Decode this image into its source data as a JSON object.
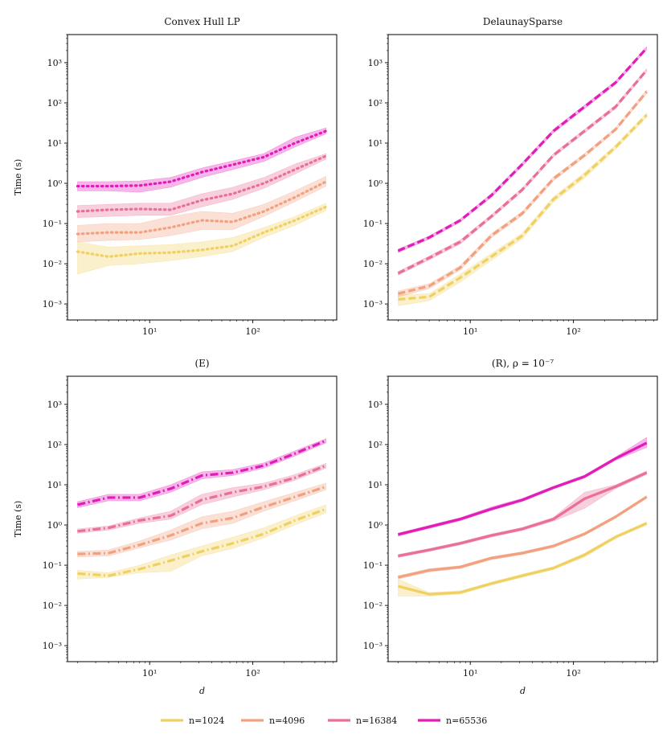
{
  "figure": {
    "legend": {
      "placement": "bottom-center",
      "entries": [
        {
          "label": "n=1024",
          "color": "#f0d060"
        },
        {
          "label": "n=4096",
          "color": "#f2a07e"
        },
        {
          "label": "n=16384",
          "color": "#ea6e96"
        },
        {
          "label": "n=65536",
          "color": "#e31cb8"
        }
      ]
    }
  },
  "chart_data": [
    {
      "type": "line",
      "title": "Convex Hull LP",
      "xlabel": "",
      "ylabel": "Time (s)",
      "xscale": "log",
      "yscale": "log",
      "xlim": [
        1.6,
        650
      ],
      "ylim": [
        0.0004,
        5000
      ],
      "linestyle": "dotted",
      "x": [
        2,
        4,
        8,
        16,
        32,
        64,
        128,
        256,
        512
      ],
      "series": [
        {
          "name": "n=1024",
          "color": "#f0d060",
          "values": [
            0.02,
            0.015,
            0.018,
            0.019,
            0.022,
            0.028,
            0.06,
            0.12,
            0.26
          ],
          "lower": [
            0.0055,
            0.009,
            0.01,
            0.012,
            0.015,
            0.02,
            0.045,
            0.09,
            0.21
          ],
          "upper": [
            0.035,
            0.026,
            0.028,
            0.03,
            0.035,
            0.045,
            0.08,
            0.15,
            0.32
          ]
        },
        {
          "name": "n=4096",
          "color": "#f2a07e",
          "values": [
            0.055,
            0.06,
            0.06,
            0.08,
            0.12,
            0.11,
            0.2,
            0.45,
            1.1
          ],
          "lower": [
            0.035,
            0.038,
            0.04,
            0.05,
            0.07,
            0.07,
            0.15,
            0.35,
            0.85
          ],
          "upper": [
            0.09,
            0.1,
            0.1,
            0.15,
            0.2,
            0.18,
            0.3,
            0.65,
            1.5
          ]
        },
        {
          "name": "n=16384",
          "color": "#ea6e96",
          "values": [
            0.2,
            0.22,
            0.23,
            0.22,
            0.38,
            0.55,
            1.0,
            2.2,
            4.8
          ],
          "lower": [
            0.14,
            0.15,
            0.16,
            0.16,
            0.26,
            0.4,
            0.75,
            1.7,
            4.0
          ],
          "upper": [
            0.28,
            0.3,
            0.32,
            0.32,
            0.55,
            0.8,
            1.4,
            3.0,
            5.5
          ]
        },
        {
          "name": "n=65536",
          "color": "#e31cb8",
          "values": [
            0.85,
            0.85,
            0.88,
            1.1,
            1.9,
            2.9,
            4.5,
            10.0,
            20.0
          ],
          "lower": [
            0.65,
            0.65,
            0.6,
            0.8,
            1.4,
            2.2,
            3.5,
            8.0,
            17.0
          ],
          "upper": [
            1.1,
            1.1,
            1.15,
            1.4,
            2.4,
            3.6,
            5.5,
            14.0,
            24.0
          ]
        }
      ]
    },
    {
      "type": "line",
      "title": "DelaunaySparse",
      "xlabel": "",
      "ylabel": "",
      "xscale": "log",
      "yscale": "log",
      "xlim": [
        1.6,
        650
      ],
      "ylim": [
        0.0004,
        5000
      ],
      "linestyle": "dashed",
      "x": [
        2,
        4,
        8,
        16,
        32,
        64,
        128,
        256,
        512
      ],
      "series": [
        {
          "name": "n=1024",
          "color": "#f0d060",
          "values": [
            0.0013,
            0.0015,
            0.0045,
            0.015,
            0.05,
            0.4,
            1.6,
            8.0,
            50
          ],
          "lower": [
            0.0009,
            0.0012,
            0.0035,
            0.012,
            0.042,
            0.34,
            1.35,
            7.0,
            44
          ],
          "upper": [
            0.0017,
            0.0018,
            0.0055,
            0.018,
            0.058,
            0.46,
            1.85,
            9.0,
            56
          ]
        },
        {
          "name": "n=4096",
          "color": "#f2a07e",
          "values": [
            0.0018,
            0.0028,
            0.008,
            0.05,
            0.18,
            1.3,
            5.0,
            22,
            190
          ],
          "lower": [
            0.0015,
            0.0024,
            0.007,
            0.044,
            0.16,
            1.15,
            4.5,
            20,
            170
          ],
          "upper": [
            0.0021,
            0.0032,
            0.009,
            0.056,
            0.2,
            1.45,
            5.5,
            24,
            210
          ]
        },
        {
          "name": "n=16384",
          "color": "#ea6e96",
          "values": [
            0.0058,
            0.014,
            0.035,
            0.15,
            0.7,
            5.0,
            20,
            80,
            650
          ],
          "lower": [
            0.0052,
            0.0125,
            0.031,
            0.135,
            0.63,
            4.5,
            18,
            72,
            590
          ],
          "upper": [
            0.0064,
            0.0155,
            0.039,
            0.165,
            0.77,
            5.5,
            22,
            88,
            710
          ]
        },
        {
          "name": "n=65536",
          "color": "#e31cb8",
          "values": [
            0.021,
            0.045,
            0.12,
            0.5,
            3.0,
            20,
            80,
            320,
            2300
          ],
          "lower": [
            0.019,
            0.041,
            0.11,
            0.45,
            2.7,
            18,
            72,
            290,
            2100
          ],
          "upper": [
            0.023,
            0.049,
            0.13,
            0.55,
            3.3,
            22,
            88,
            350,
            2500
          ]
        }
      ]
    },
    {
      "type": "line",
      "title": "(E)",
      "xlabel": "d",
      "ylabel": "Time (s)",
      "xscale": "log",
      "yscale": "log",
      "xlim": [
        1.6,
        650
      ],
      "ylim": [
        0.0004,
        5000
      ],
      "linestyle": "dashdot",
      "x": [
        2,
        4,
        8,
        16,
        32,
        64,
        128,
        256,
        512
      ],
      "series": [
        {
          "name": "n=1024",
          "color": "#f0d060",
          "values": [
            0.062,
            0.055,
            0.08,
            0.13,
            0.22,
            0.35,
            0.6,
            1.3,
            2.5
          ],
          "lower": [
            0.045,
            0.05,
            0.065,
            0.07,
            0.17,
            0.26,
            0.48,
            1.0,
            2.0
          ],
          "upper": [
            0.075,
            0.065,
            0.1,
            0.18,
            0.3,
            0.5,
            0.85,
            1.7,
            3.2
          ]
        },
        {
          "name": "n=4096",
          "color": "#f2a07e",
          "values": [
            0.19,
            0.2,
            0.32,
            0.55,
            1.1,
            1.5,
            2.8,
            5.0,
            9.0
          ],
          "lower": [
            0.16,
            0.17,
            0.27,
            0.42,
            0.8,
            1.1,
            2.2,
            4.0,
            7.5
          ],
          "upper": [
            0.22,
            0.24,
            0.4,
            0.75,
            1.6,
            2.2,
            3.8,
            6.5,
            11
          ]
        },
        {
          "name": "n=16384",
          "color": "#ea6e96",
          "values": [
            0.7,
            0.85,
            1.3,
            1.7,
            4.2,
            6.5,
            9.0,
            15,
            30
          ],
          "lower": [
            0.62,
            0.75,
            1.1,
            1.4,
            3.2,
            5.0,
            7.5,
            13,
            26
          ],
          "upper": [
            0.8,
            0.95,
            1.5,
            2.2,
            5.8,
            8.5,
            11,
            18,
            34
          ]
        },
        {
          "name": "n=65536",
          "color": "#e31cb8",
          "values": [
            3.2,
            4.8,
            4.8,
            8.0,
            17,
            20,
            30,
            60,
            125
          ],
          "lower": [
            2.7,
            4.0,
            4.0,
            6.5,
            14,
            17,
            26,
            52,
            110
          ],
          "upper": [
            3.8,
            5.8,
            5.8,
            10,
            21,
            24,
            35,
            70,
            140
          ]
        }
      ]
    },
    {
      "type": "line",
      "title": "(R), ρ = 10⁻⁷",
      "xlabel": "d",
      "ylabel": "",
      "xscale": "log",
      "yscale": "log",
      "xlim": [
        1.6,
        650
      ],
      "ylim": [
        0.0004,
        5000
      ],
      "linestyle": "solid",
      "x": [
        2,
        4,
        8,
        16,
        32,
        64,
        128,
        256,
        512
      ],
      "series": [
        {
          "name": "n=1024",
          "color": "#f0d060",
          "values": [
            0.03,
            0.019,
            0.021,
            0.035,
            0.055,
            0.085,
            0.18,
            0.5,
            1.1
          ],
          "lower": [
            0.017,
            0.017,
            0.019,
            0.032,
            0.05,
            0.078,
            0.16,
            0.46,
            1.0
          ],
          "upper": [
            0.045,
            0.021,
            0.023,
            0.038,
            0.06,
            0.092,
            0.2,
            0.55,
            1.2
          ]
        },
        {
          "name": "n=4096",
          "color": "#f2a07e",
          "values": [
            0.05,
            0.075,
            0.09,
            0.15,
            0.2,
            0.3,
            0.6,
            1.6,
            5.0
          ],
          "lower": [
            0.045,
            0.068,
            0.082,
            0.137,
            0.183,
            0.275,
            0.55,
            1.47,
            4.6
          ],
          "upper": [
            0.055,
            0.082,
            0.098,
            0.163,
            0.217,
            0.325,
            0.65,
            1.73,
            5.4
          ]
        },
        {
          "name": "n=16384",
          "color": "#ea6e96",
          "values": [
            0.17,
            0.24,
            0.35,
            0.55,
            0.8,
            1.4,
            4.5,
            9.0,
            20
          ],
          "lower": [
            0.155,
            0.22,
            0.32,
            0.5,
            0.73,
            1.25,
            2.6,
            8.0,
            18
          ],
          "upper": [
            0.185,
            0.26,
            0.38,
            0.6,
            0.87,
            1.55,
            6.5,
            10,
            22
          ]
        },
        {
          "name": "n=65536",
          "color": "#e31cb8",
          "values": [
            0.58,
            0.9,
            1.4,
            2.5,
            4.2,
            8.5,
            16,
            45,
            110
          ],
          "lower": [
            0.53,
            0.82,
            1.28,
            2.3,
            3.85,
            7.8,
            14.7,
            41,
            85
          ],
          "upper": [
            0.63,
            0.98,
            1.52,
            2.8,
            4.6,
            9.2,
            17.5,
            49,
            150
          ]
        }
      ]
    }
  ]
}
